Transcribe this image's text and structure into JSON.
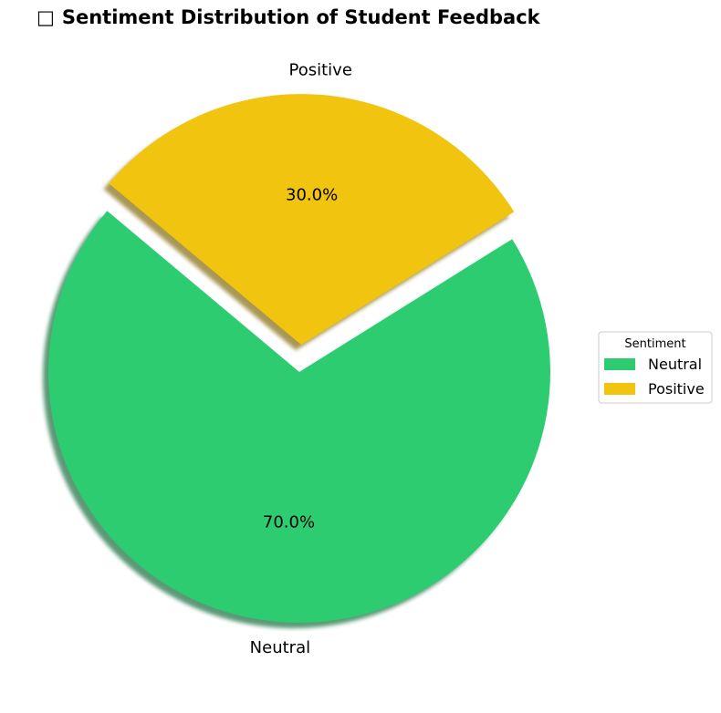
{
  "chart_data": {
    "type": "pie",
    "title_icon": "□",
    "title": "Sentiment Distribution of Student Feedback",
    "categories": [
      "Neutral",
      "Positive"
    ],
    "values": [
      70.0,
      30.0
    ],
    "value_labels": [
      "70.0%",
      "30.0%"
    ],
    "colors": [
      "#2ecc71",
      "#f1c40f"
    ],
    "exploded": [
      false,
      true
    ],
    "shadow": true,
    "start_angle_deg": 140,
    "direction": "counterclockwise",
    "legend": {
      "title": "Sentiment",
      "entries": [
        "Neutral",
        "Positive"
      ],
      "placement": "center-right"
    }
  }
}
